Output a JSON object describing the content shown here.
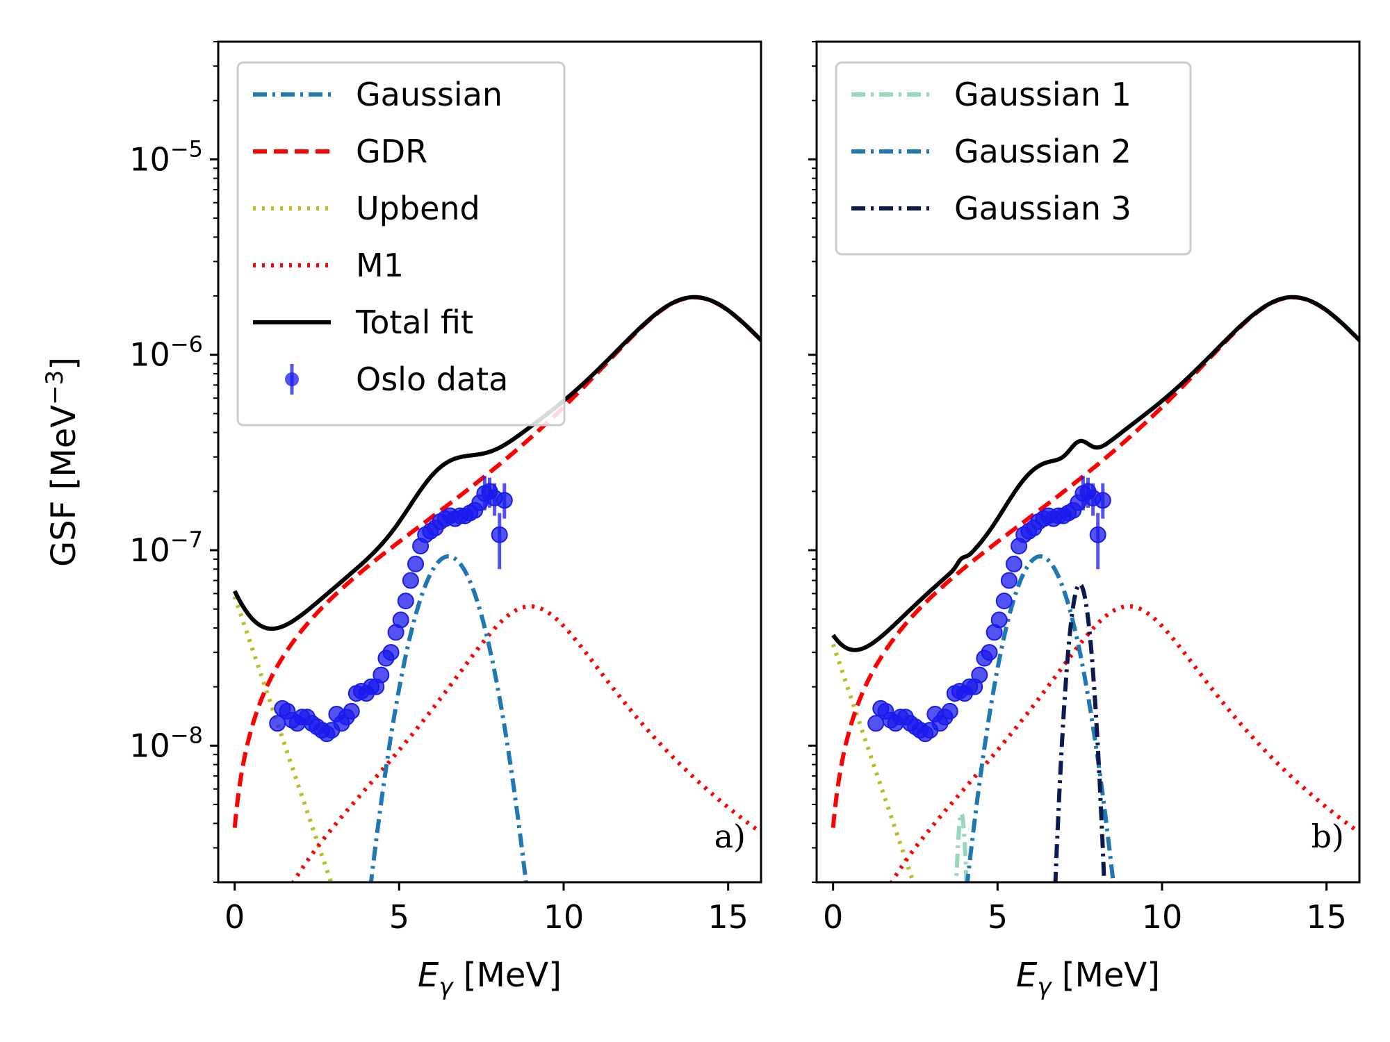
{
  "chart_data": [
    {
      "panel": "a)",
      "type": "line",
      "xlabel": "E_γ [MeV]",
      "ylabel": "GSF [MeV⁻³]",
      "xlim": [
        -0.5,
        16
      ],
      "ylim_log": [
        2e-09,
        4e-05
      ],
      "yscale": "log",
      "xticks": [
        0,
        5,
        10,
        15
      ],
      "yticks": [
        1e-08,
        1e-07,
        1e-06,
        1e-05
      ],
      "legend_position": "top-left",
      "series": [
        {
          "name": "Gaussian",
          "key": "gauss",
          "style": "dashdot",
          "color": "#1f77b4",
          "amplitude": 9.3e-08,
          "center": 6.5,
          "sigma": 0.85
        },
        {
          "name": "GDR",
          "key": "gdr",
          "style": "dashed",
          "color": "#ff0000",
          "peak": 1.95e-06,
          "peak_energy": 14.2
        },
        {
          "name": "Upbend",
          "key": "upbend",
          "style": "dotted",
          "color": "#bcbd22",
          "c0": 5.8e-08,
          "slope": 1.15
        },
        {
          "name": "M1",
          "key": "m1",
          "style": "dotted",
          "color": "#ff0000",
          "peak": 5.1e-08,
          "peak_energy": 9.2
        },
        {
          "name": "Total fit",
          "key": "total",
          "style": "solid",
          "color": "#000000"
        },
        {
          "name": "Oslo data",
          "key": "data",
          "style": "errorbar",
          "color": "#1a1aee"
        }
      ]
    },
    {
      "panel": "b)",
      "type": "line",
      "xlabel": "E_γ [MeV]",
      "xlim": [
        -0.5,
        16
      ],
      "ylim_log": [
        2e-09,
        4e-05
      ],
      "yscale": "log",
      "xticks": [
        0,
        5,
        10,
        15
      ],
      "legend_position": "top-left",
      "series": [
        {
          "name": "Gaussian 1",
          "key": "g1",
          "style": "dashdot",
          "color": "#98d8b8",
          "amplitude": 4.5e-09,
          "center": 3.9,
          "sigma": 0.12
        },
        {
          "name": "Gaussian 2",
          "key": "g2",
          "style": "dashdot",
          "color": "#1f77b4",
          "amplitude": 9.3e-08,
          "center": 6.3,
          "sigma": 0.8
        },
        {
          "name": "Gaussian 3",
          "key": "g3",
          "style": "dashdot",
          "color": "#0b1a4f",
          "amplitude": 6.7e-08,
          "center": 7.5,
          "sigma": 0.28
        },
        {
          "name": "GDR",
          "key": "gdr",
          "style": "dashed",
          "color": "#ff0000"
        },
        {
          "name": "Upbend",
          "key": "upbend",
          "style": "dotted",
          "color": "#bcbd22",
          "c0": 3.3e-08,
          "slope": 1.15
        },
        {
          "name": "M1",
          "key": "m1",
          "style": "dotted",
          "color": "#ff0000"
        },
        {
          "name": "Total fit",
          "key": "total",
          "style": "solid",
          "color": "#000000"
        },
        {
          "name": "Oslo data",
          "key": "data",
          "style": "errorbar",
          "color": "#1a1aee"
        }
      ]
    }
  ],
  "oslo_data": {
    "energy": [
      1.3,
      1.45,
      1.6,
      1.75,
      1.9,
      2.05,
      2.2,
      2.35,
      2.5,
      2.65,
      2.8,
      2.95,
      3.1,
      3.25,
      3.4,
      3.55,
      3.7,
      3.85,
      4.0,
      4.15,
      4.3,
      4.45,
      4.6,
      4.75,
      4.9,
      5.05,
      5.2,
      5.35,
      5.5,
      5.65,
      5.8,
      5.95,
      6.1,
      6.25,
      6.4,
      6.55,
      6.7,
      6.85,
      7.0,
      7.15,
      7.3,
      7.45,
      7.6,
      7.75,
      7.9,
      8.05,
      8.2
    ],
    "gsf": [
      1.3e-08,
      1.55e-08,
      1.5e-08,
      1.35e-08,
      1.3e-08,
      1.4e-08,
      1.4e-08,
      1.3e-08,
      1.25e-08,
      1.2e-08,
      1.15e-08,
      1.2e-08,
      1.45e-08,
      1.3e-08,
      1.4e-08,
      1.5e-08,
      1.85e-08,
      1.9e-08,
      1.85e-08,
      2e-08,
      2e-08,
      2.3e-08,
      2.8e-08,
      3e-08,
      3.8e-08,
      4.4e-08,
      5.5e-08,
      7e-08,
      8.5e-08,
      1.05e-07,
      1.2e-07,
      1.25e-07,
      1.3e-07,
      1.4e-07,
      1.45e-07,
      1.5e-07,
      1.45e-07,
      1.5e-07,
      1.5e-07,
      1.55e-07,
      1.6e-07,
      1.75e-07,
      1.95e-07,
      2e-07,
      1.85e-07,
      1.2e-07,
      1.8e-07
    ],
    "err_hi": [
      0,
      0,
      0,
      0,
      0,
      0,
      0,
      0,
      0,
      0,
      0,
      0,
      0,
      0,
      0,
      0,
      0,
      0,
      0,
      0,
      0,
      0,
      0,
      0,
      0,
      0,
      0,
      0,
      0,
      0,
      0,
      0,
      0,
      0,
      0,
      0,
      0,
      0,
      0,
      0,
      0,
      0,
      2.4e-07,
      2.35e-07,
      2.2e-07,
      1.55e-07,
      2.2e-07
    ],
    "err_lo": [
      0,
      0,
      0,
      0,
      0,
      0,
      0,
      0,
      0,
      0,
      0,
      0,
      0,
      0,
      0,
      0,
      0,
      0,
      0,
      0,
      0,
      0,
      0,
      0,
      0,
      0,
      0,
      0,
      0,
      0,
      0,
      0,
      0,
      0,
      0,
      0,
      0,
      0,
      0,
      0,
      0,
      0,
      1.6e-07,
      1.65e-07,
      1.5e-07,
      8e-08,
      1.45e-07
    ]
  },
  "tick_text": {
    "x": [
      "0",
      "5",
      "10",
      "15"
    ],
    "y_base": "10",
    "y_exp": [
      "−8",
      "−7",
      "−6",
      "−5"
    ]
  },
  "labels": {
    "ylabel": "GSF [MeV",
    "ylabel_exp": "−3",
    "ylabel_end": "]",
    "xlabel_var": "E",
    "xlabel_sub": "γ",
    "xlabel_unit": " [MeV]"
  }
}
